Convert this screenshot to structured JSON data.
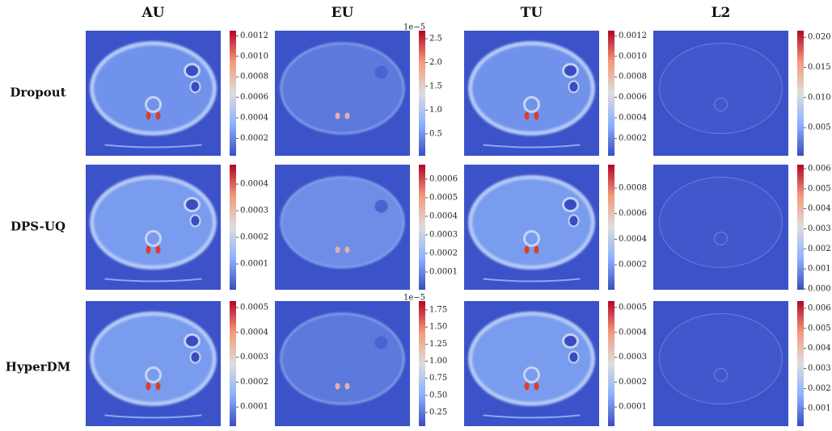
{
  "columns": [
    "AU",
    "EU",
    "TU",
    "L2"
  ],
  "rows": [
    {
      "label": "Dropout",
      "panels": [
        {
          "clim": [
            3e-05,
            0.00125
          ],
          "ticks": [
            0.0002,
            0.0004,
            0.0006,
            0.0008,
            {
              "value": 0.001,
              "label": "0.0010"
            },
            0.0012
          ]
        },
        {
          "offset_label": "1e−5",
          "clim": [
            0.04,
            2.67
          ],
          "ticks": [
            0.5,
            {
              "value": 1,
              "label": "1.0"
            },
            1.5,
            {
              "value": 2,
              "label": "2.0"
            },
            2.5
          ]
        },
        {
          "clim": [
            3e-05,
            0.00125
          ],
          "ticks": [
            0.0002,
            0.0004,
            0.0006,
            0.0008,
            {
              "value": 0.001,
              "label": "0.0010"
            },
            0.0012
          ]
        },
        {
          "clim": [
            0.00033,
            0.0211
          ],
          "ticks": [
            0.005,
            {
              "value": 0.01,
              "label": "0.010"
            },
            0.015,
            {
              "value": 0.02,
              "label": "0.020"
            }
          ]
        }
      ]
    },
    {
      "label": "DPS-UQ",
      "panels": [
        {
          "clim": [
            3e-06,
            0.000473
          ],
          "ticks": [
            0.0001,
            0.0002,
            0.0003,
            0.0004
          ]
        },
        {
          "clim": [
            4.3e-06,
            0.000678
          ],
          "ticks": [
            0.0001,
            0.0002,
            0.0003,
            0.0004,
            0.0005,
            0.0006
          ]
        },
        {
          "clim": [
            4.4e-06,
            0.000983
          ],
          "ticks": [
            0.0002,
            0.0004,
            0.0006,
            0.0008
          ]
        },
        {
          "clim": [
            -4e-05,
            0.0062
          ],
          "ticks": [
            {
              "value": 0,
              "label": "0.000"
            },
            0.001,
            0.002,
            0.003,
            0.004,
            0.005,
            0.006
          ]
        }
      ]
    },
    {
      "label": "HyperDM",
      "panels": [
        {
          "clim": [
            2.26e-05,
            0.000526
          ],
          "ticks": [
            0.0001,
            0.0002,
            0.0003,
            0.0004,
            0.0005
          ]
        },
        {
          "offset_label": "1e−5",
          "clim": [
            0.05,
            1.88
          ],
          "ticks": [
            0.25,
            {
              "value": 0.5,
              "label": "0.50"
            },
            0.75,
            {
              "value": 1,
              "label": "1.00"
            },
            1.25,
            {
              "value": 1.5,
              "label": "1.50"
            },
            1.75
          ]
        },
        {
          "clim": [
            2.26e-05,
            0.000526
          ],
          "ticks": [
            0.0001,
            0.0002,
            0.0003,
            0.0004,
            0.0005
          ]
        },
        {
          "clim": [
            0.00012,
            0.00636
          ],
          "ticks": [
            0.001,
            0.002,
            0.003,
            0.004,
            0.005,
            0.006
          ]
        }
      ]
    }
  ]
}
